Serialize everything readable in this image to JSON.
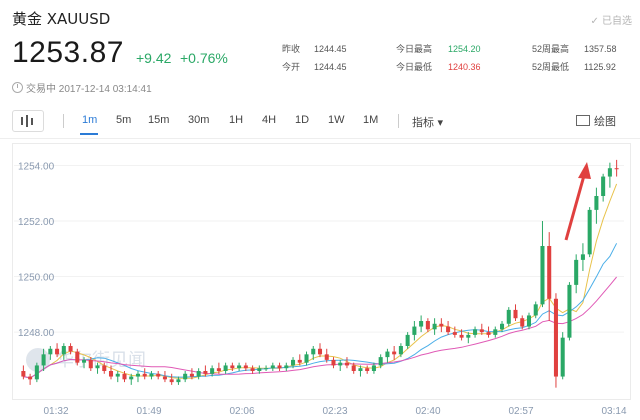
{
  "header": {
    "title": "黄金  XAUUSD",
    "followed_label": "✓ 已自选",
    "price": "1253.87",
    "change_abs": "+9.42",
    "change_pct": "+0.76%",
    "status_text": "交易中 2017-12-14 03:14:41"
  },
  "stats": [
    {
      "label": "昨收",
      "value": "1244.45",
      "tone": "normal"
    },
    {
      "label": "今开",
      "value": "1244.45",
      "tone": "normal"
    },
    {
      "label": "今日最高",
      "value": "1254.20",
      "tone": "green"
    },
    {
      "label": "今日最低",
      "value": "1240.36",
      "tone": "red"
    },
    {
      "label": "52周最高",
      "value": "1357.58",
      "tone": "normal"
    },
    {
      "label": "52周最低",
      "value": "1125.92",
      "tone": "normal"
    }
  ],
  "toolbar": {
    "tabs": [
      "1m",
      "5m",
      "15m",
      "30m",
      "1H",
      "4H",
      "1D",
      "1W",
      "1M"
    ],
    "active_tab": "1m",
    "indicator_label": "指标 ▾",
    "draw_label": "绘图"
  },
  "watermark": "华尔街见闻",
  "colors": {
    "up": "#2aa866",
    "down": "#e0403f",
    "ma_yellow": "#e8c24a",
    "ma_blue": "#4aaee8",
    "ma_pink": "#e05ab6",
    "accent": "#2b7bd6"
  },
  "chart_data": {
    "type": "candlestick",
    "ylim": [
      1245.7,
      1254.7
    ],
    "yticks": [
      "1254.00",
      "1252.00",
      "1250.00",
      "1248.00"
    ],
    "ytick_values": [
      1254,
      1252,
      1250,
      1248
    ],
    "xticks": [
      "01:32",
      "01:49",
      "02:06",
      "02:23",
      "02:40",
      "02:57",
      "03:14"
    ],
    "ohlc": [
      [
        1246.6,
        1246.8,
        1246.3,
        1246.4
      ],
      [
        1246.4,
        1246.5,
        1246.1,
        1246.3
      ],
      [
        1246.3,
        1246.9,
        1246.2,
        1246.8
      ],
      [
        1246.8,
        1247.4,
        1246.6,
        1247.2
      ],
      [
        1247.2,
        1247.5,
        1247.0,
        1247.4
      ],
      [
        1247.4,
        1247.6,
        1247.1,
        1247.2
      ],
      [
        1247.2,
        1247.6,
        1247.0,
        1247.5
      ],
      [
        1247.5,
        1247.6,
        1247.2,
        1247.3
      ],
      [
        1247.3,
        1247.4,
        1246.8,
        1246.9
      ],
      [
        1246.9,
        1247.1,
        1246.7,
        1247.0
      ],
      [
        1247.0,
        1247.1,
        1246.6,
        1246.7
      ],
      [
        1246.7,
        1246.9,
        1246.5,
        1246.8
      ],
      [
        1246.8,
        1246.9,
        1246.5,
        1246.6
      ],
      [
        1246.6,
        1246.8,
        1246.3,
        1246.4
      ],
      [
        1246.4,
        1246.6,
        1246.2,
        1246.5
      ],
      [
        1246.5,
        1246.6,
        1246.2,
        1246.3
      ],
      [
        1246.3,
        1246.5,
        1246.1,
        1246.4
      ],
      [
        1246.4,
        1246.6,
        1246.2,
        1246.5
      ],
      [
        1246.5,
        1246.7,
        1246.3,
        1246.4
      ],
      [
        1246.4,
        1246.6,
        1246.3,
        1246.5
      ],
      [
        1246.5,
        1246.6,
        1246.3,
        1246.4
      ],
      [
        1246.4,
        1246.6,
        1246.2,
        1246.3
      ],
      [
        1246.3,
        1246.5,
        1246.1,
        1246.2
      ],
      [
        1246.2,
        1246.4,
        1246.1,
        1246.3
      ],
      [
        1246.3,
        1246.6,
        1246.2,
        1246.5
      ],
      [
        1246.5,
        1246.7,
        1246.3,
        1246.4
      ],
      [
        1246.4,
        1246.7,
        1246.3,
        1246.6
      ],
      [
        1246.6,
        1246.8,
        1246.4,
        1246.5
      ],
      [
        1246.5,
        1246.8,
        1246.4,
        1246.7
      ],
      [
        1246.7,
        1246.9,
        1246.5,
        1246.6
      ],
      [
        1246.6,
        1246.9,
        1246.5,
        1246.8
      ],
      [
        1246.8,
        1246.9,
        1246.6,
        1246.7
      ],
      [
        1246.7,
        1246.9,
        1246.6,
        1246.8
      ],
      [
        1246.8,
        1246.9,
        1246.6,
        1246.7
      ],
      [
        1246.7,
        1246.8,
        1246.5,
        1246.6
      ],
      [
        1246.6,
        1246.8,
        1246.5,
        1246.7
      ],
      [
        1246.7,
        1246.8,
        1246.6,
        1246.7
      ],
      [
        1246.7,
        1246.9,
        1246.6,
        1246.8
      ],
      [
        1246.8,
        1246.9,
        1246.6,
        1246.7
      ],
      [
        1246.7,
        1246.9,
        1246.6,
        1246.8
      ],
      [
        1246.8,
        1247.1,
        1246.7,
        1247.0
      ],
      [
        1247.0,
        1247.2,
        1246.8,
        1246.9
      ],
      [
        1246.9,
        1247.3,
        1246.8,
        1247.2
      ],
      [
        1247.2,
        1247.5,
        1247.0,
        1247.4
      ],
      [
        1247.4,
        1247.6,
        1247.1,
        1247.2
      ],
      [
        1247.2,
        1247.4,
        1246.9,
        1247.0
      ],
      [
        1247.0,
        1247.1,
        1246.7,
        1246.8
      ],
      [
        1246.8,
        1247.0,
        1246.6,
        1246.9
      ],
      [
        1246.9,
        1247.1,
        1246.7,
        1246.8
      ],
      [
        1246.8,
        1246.9,
        1246.5,
        1246.6
      ],
      [
        1246.6,
        1246.8,
        1246.4,
        1246.7
      ],
      [
        1246.7,
        1246.8,
        1246.5,
        1246.6
      ],
      [
        1246.6,
        1246.9,
        1246.5,
        1246.8
      ],
      [
        1246.8,
        1247.2,
        1246.7,
        1247.1
      ],
      [
        1247.1,
        1247.4,
        1246.9,
        1247.3
      ],
      [
        1247.3,
        1247.5,
        1247.0,
        1247.2
      ],
      [
        1247.2,
        1247.6,
        1247.1,
        1247.5
      ],
      [
        1247.5,
        1248.0,
        1247.4,
        1247.9
      ],
      [
        1247.9,
        1248.4,
        1247.7,
        1248.2
      ],
      [
        1248.2,
        1248.6,
        1248.0,
        1248.4
      ],
      [
        1248.4,
        1248.5,
        1248.0,
        1248.1
      ],
      [
        1248.1,
        1248.5,
        1247.9,
        1248.3
      ],
      [
        1248.3,
        1248.5,
        1248.0,
        1248.2
      ],
      [
        1248.2,
        1248.4,
        1247.9,
        1248.0
      ],
      [
        1248.0,
        1248.2,
        1247.8,
        1247.9
      ],
      [
        1247.9,
        1248.1,
        1247.7,
        1247.8
      ],
      [
        1247.8,
        1248.0,
        1247.6,
        1247.9
      ],
      [
        1247.9,
        1248.2,
        1247.8,
        1248.1
      ],
      [
        1248.1,
        1248.3,
        1247.9,
        1248.0
      ],
      [
        1248.0,
        1248.2,
        1247.8,
        1247.9
      ],
      [
        1247.9,
        1248.2,
        1247.8,
        1248.1
      ],
      [
        1248.1,
        1248.4,
        1248.0,
        1248.3
      ],
      [
        1248.3,
        1248.9,
        1248.2,
        1248.8
      ],
      [
        1248.8,
        1249.0,
        1248.4,
        1248.5
      ],
      [
        1248.5,
        1248.6,
        1248.1,
        1248.2
      ],
      [
        1248.2,
        1248.7,
        1248.1,
        1248.6
      ],
      [
        1248.6,
        1249.1,
        1248.5,
        1249.0
      ],
      [
        1249.0,
        1252.0,
        1248.9,
        1251.1
      ],
      [
        1251.1,
        1251.6,
        1248.4,
        1249.2
      ],
      [
        1249.2,
        1249.4,
        1246.0,
        1246.4
      ],
      [
        1246.4,
        1248.0,
        1246.3,
        1247.8
      ],
      [
        1247.8,
        1249.8,
        1247.7,
        1249.7
      ],
      [
        1249.7,
        1250.8,
        1249.4,
        1250.6
      ],
      [
        1250.6,
        1251.2,
        1250.2,
        1250.8
      ],
      [
        1250.8,
        1252.5,
        1250.7,
        1252.4
      ],
      [
        1252.4,
        1253.2,
        1251.9,
        1252.9
      ],
      [
        1252.9,
        1253.7,
        1252.7,
        1253.6
      ],
      [
        1253.6,
        1254.1,
        1253.2,
        1253.9
      ],
      [
        1253.9,
        1254.2,
        1253.6,
        1253.87
      ]
    ],
    "ma_periods": [
      5,
      10,
      20
    ]
  }
}
